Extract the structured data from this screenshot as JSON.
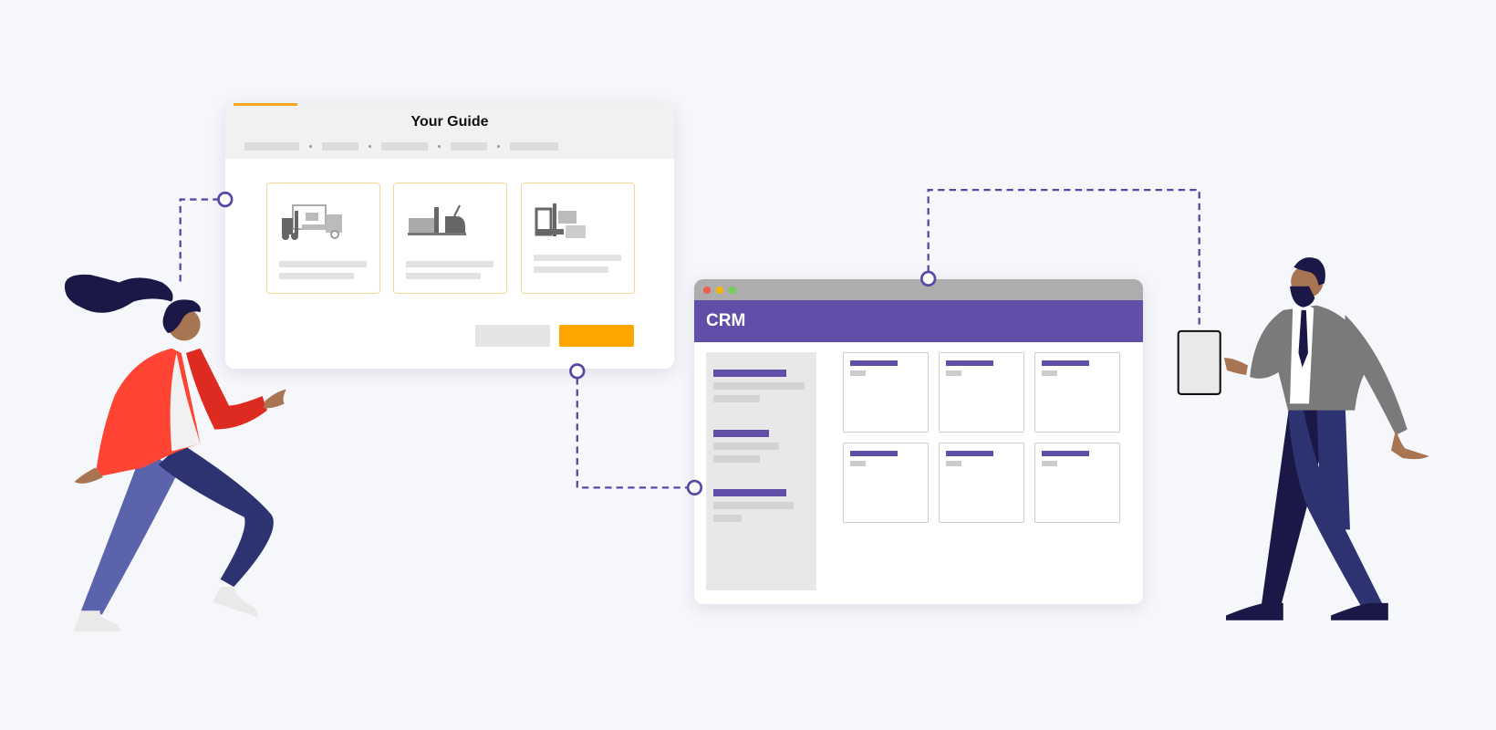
{
  "guide": {
    "title": "Your Guide",
    "cards": [
      {
        "icon": "forklift-truck-icon"
      },
      {
        "icon": "pallet-truck-icon"
      },
      {
        "icon": "reach-forklift-icon"
      }
    ],
    "progress_percent": 15
  },
  "crm": {
    "title": "CRM"
  },
  "colors": {
    "background": "#f6f7fb",
    "accent_orange": "#ffa600",
    "crm_purple": "#614ea8",
    "connector": "#5a47a3",
    "jacket_red": "#ff4433",
    "pants_navy": "#2d3370"
  }
}
